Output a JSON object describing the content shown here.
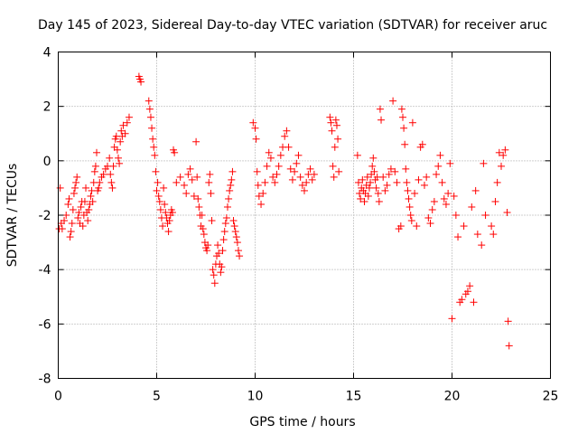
{
  "chart_data": {
    "type": "scatter",
    "title": "Day 145 of 2023, Sidereal Day-to-day VTEC variation (SDTVAR) for receiver aruc",
    "xlabel": "GPS time / hours",
    "ylabel": "SDTVAR / TECUs",
    "xlim": [
      0,
      25
    ],
    "ylim": [
      -8,
      4
    ],
    "xticks": [
      0,
      5,
      10,
      15,
      20,
      25
    ],
    "yticks": [
      -8,
      -6,
      -4,
      -2,
      0,
      2,
      4
    ],
    "grid": true,
    "marker": "+",
    "marker_color": "#ff0000",
    "series": [
      {
        "name": "SDTVAR",
        "x": [
          0.05,
          0.1,
          0.15,
          0.2,
          0.3,
          0.4,
          0.5,
          0.55,
          0.6,
          0.65,
          0.7,
          0.75,
          0.8,
          0.85,
          0.9,
          0.95,
          1.0,
          1.05,
          1.1,
          1.15,
          1.2,
          1.25,
          1.3,
          1.35,
          1.4,
          1.45,
          1.5,
          1.55,
          1.6,
          1.65,
          1.7,
          1.75,
          1.8,
          1.85,
          1.9,
          1.95,
          2.0,
          2.05,
          2.1,
          2.2,
          2.3,
          2.4,
          2.5,
          2.6,
          2.65,
          2.7,
          2.75,
          2.8,
          2.85,
          2.9,
          2.95,
          3.0,
          3.05,
          3.1,
          3.15,
          3.2,
          3.25,
          3.3,
          3.4,
          3.5,
          3.6,
          4.1,
          4.15,
          4.2,
          4.6,
          4.65,
          4.7,
          4.75,
          4.8,
          4.85,
          4.9,
          4.95,
          5.0,
          5.05,
          5.1,
          5.15,
          5.2,
          5.25,
          5.3,
          5.35,
          5.4,
          5.45,
          5.5,
          5.55,
          5.6,
          5.65,
          5.7,
          5.75,
          5.8,
          5.85,
          5.9,
          6.0,
          6.2,
          6.4,
          6.5,
          6.6,
          6.7,
          6.8,
          6.9,
          7.0,
          7.05,
          7.1,
          7.15,
          7.2,
          7.25,
          7.3,
          7.35,
          7.4,
          7.45,
          7.5,
          7.55,
          7.6,
          7.65,
          7.7,
          7.75,
          7.8,
          7.85,
          7.9,
          7.95,
          8.0,
          8.05,
          8.1,
          8.15,
          8.2,
          8.25,
          8.3,
          8.35,
          8.4,
          8.45,
          8.5,
          8.55,
          8.6,
          8.65,
          8.7,
          8.75,
          8.8,
          8.85,
          8.9,
          8.95,
          9.0,
          9.05,
          9.1,
          9.15,
          9.2,
          9.9,
          10.0,
          10.05,
          10.1,
          10.15,
          10.2,
          10.3,
          10.4,
          10.5,
          10.6,
          10.7,
          10.8,
          10.9,
          11.0,
          11.1,
          11.2,
          11.3,
          11.4,
          11.5,
          11.6,
          11.7,
          11.8,
          11.9,
          12.0,
          12.1,
          12.2,
          12.3,
          12.4,
          12.5,
          12.6,
          12.7,
          12.8,
          12.9,
          13.0,
          13.8,
          13.85,
          13.9,
          13.95,
          14.0,
          14.05,
          14.1,
          14.15,
          14.2,
          14.25,
          15.2,
          15.25,
          15.3,
          15.35,
          15.4,
          15.45,
          15.5,
          15.55,
          15.6,
          15.65,
          15.7,
          15.75,
          15.8,
          15.85,
          15.9,
          15.95,
          16.0,
          16.05,
          16.1,
          16.15,
          16.2,
          16.25,
          16.3,
          16.35,
          16.4,
          16.5,
          16.6,
          16.7,
          16.8,
          16.9,
          17.0,
          17.1,
          17.2,
          17.3,
          17.4,
          17.45,
          17.5,
          17.55,
          17.6,
          17.65,
          17.7,
          17.75,
          17.8,
          17.85,
          17.9,
          17.95,
          18.0,
          18.1,
          18.2,
          18.3,
          18.4,
          18.5,
          18.6,
          18.7,
          18.8,
          18.9,
          19.0,
          19.1,
          19.2,
          19.3,
          19.4,
          19.5,
          19.6,
          19.7,
          19.8,
          19.9,
          20.0,
          20.1,
          20.2,
          20.3,
          20.4,
          20.5,
          20.6,
          20.7,
          20.8,
          20.9,
          21.0,
          21.1,
          21.2,
          21.3,
          21.5,
          21.6,
          21.7,
          22.0,
          22.1,
          22.2,
          22.3,
          22.4,
          22.5,
          22.6,
          22.7,
          22.8,
          22.85,
          22.9
        ],
        "y": [
          -2.5,
          -1.0,
          -2.3,
          -2.5,
          -2.2,
          -2.0,
          -1.6,
          -1.4,
          -2.8,
          -2.6,
          -2.3,
          -1.8,
          -1.2,
          -1.0,
          -0.8,
          -0.6,
          -2.1,
          -1.9,
          -2.3,
          -1.7,
          -1.5,
          -2.4,
          -2.0,
          -1.5,
          -1.0,
          -1.9,
          -2.2,
          -1.8,
          -1.6,
          -1.3,
          -1.1,
          -1.5,
          -0.8,
          -0.4,
          -0.2,
          0.3,
          -1.1,
          -1.0,
          -0.8,
          -0.6,
          -0.5,
          -0.3,
          -0.2,
          0.1,
          -0.5,
          -0.8,
          -1.0,
          -0.2,
          0.5,
          0.8,
          0.9,
          0.4,
          0.1,
          -0.1,
          0.7,
          1.1,
          0.9,
          1.3,
          1.0,
          1.4,
          1.6,
          3.1,
          3.0,
          2.9,
          2.2,
          1.9,
          1.6,
          1.2,
          0.8,
          0.5,
          0.2,
          -0.4,
          -1.1,
          -0.8,
          -1.3,
          -1.5,
          -1.8,
          -2.1,
          -2.4,
          -1.0,
          -1.6,
          -1.9,
          -2.1,
          -2.3,
          -2.6,
          -2.2,
          -2.0,
          -1.8,
          -1.9,
          0.4,
          0.3,
          -0.8,
          -0.6,
          -0.9,
          -1.2,
          -0.5,
          -0.3,
          -0.7,
          -1.3,
          0.7,
          -0.6,
          -1.4,
          -1.7,
          -2.0,
          -2.4,
          -2.0,
          -2.5,
          -2.7,
          -3.0,
          -3.2,
          -3.3,
          -3.1,
          -0.8,
          -0.5,
          -1.2,
          -2.2,
          -4.0,
          -4.2,
          -4.5,
          -3.8,
          -3.5,
          -3.1,
          -3.4,
          -3.8,
          -4.1,
          -3.9,
          -3.3,
          -2.9,
          -2.6,
          -2.3,
          -2.1,
          -1.7,
          -1.4,
          -1.1,
          -0.9,
          -0.7,
          -0.4,
          -2.2,
          -2.4,
          -2.6,
          -2.8,
          -3.0,
          -3.3,
          -3.5,
          1.4,
          1.2,
          0.8,
          -0.4,
          -0.9,
          -1.3,
          -1.6,
          -1.2,
          -0.8,
          -0.2,
          0.3,
          0.1,
          -0.6,
          -0.8,
          -0.5,
          -0.2,
          0.2,
          0.5,
          0.9,
          1.1,
          0.5,
          -0.3,
          -0.7,
          -0.4,
          -0.1,
          0.2,
          -0.6,
          -0.9,
          -1.1,
          -0.8,
          -0.5,
          -0.3,
          -0.7,
          -0.5,
          1.6,
          1.4,
          1.1,
          -0.2,
          -0.6,
          0.5,
          1.5,
          1.3,
          0.8,
          -0.4,
          0.2,
          -0.8,
          -1.2,
          -1.4,
          -1.0,
          -0.7,
          -1.1,
          -1.5,
          -1.2,
          -0.9,
          -0.6,
          -1.3,
          -1.0,
          -0.8,
          -0.5,
          -0.2,
          0.1,
          -0.4,
          -0.7,
          -1.0,
          -0.6,
          -1.2,
          -1.5,
          1.9,
          1.5,
          -0.6,
          -1.1,
          -0.9,
          -0.5,
          -0.3,
          2.2,
          -0.4,
          -0.8,
          -2.5,
          -2.4,
          1.9,
          1.6,
          1.2,
          0.6,
          -0.3,
          -0.8,
          -1.1,
          -1.4,
          -1.7,
          -2.0,
          -2.2,
          1.4,
          -1.2,
          -2.4,
          -0.7,
          0.5,
          0.6,
          -0.9,
          -0.6,
          -2.1,
          -2.3,
          -1.8,
          -1.5,
          -0.5,
          -0.2,
          0.2,
          -0.8,
          -1.4,
          -1.6,
          -1.2,
          -0.1,
          -5.8,
          -1.3,
          -2.0,
          -2.8,
          -5.2,
          -5.1,
          -2.4,
          -4.9,
          -4.8,
          -4.6,
          -1.7,
          -5.2,
          -1.1,
          -2.7,
          -3.1,
          -0.1,
          -2.0,
          -2.4,
          -2.7,
          -1.5,
          -0.8,
          0.3,
          -0.2,
          0.2,
          0.4,
          -1.9,
          -5.9,
          -6.8
        ]
      }
    ]
  }
}
